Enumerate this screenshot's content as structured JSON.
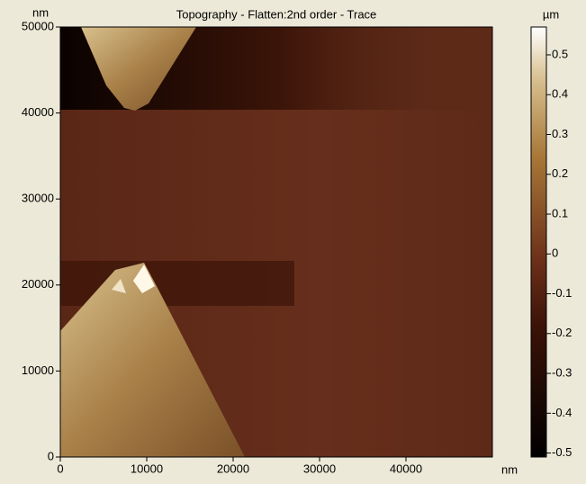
{
  "chart_data": {
    "type": "image",
    "title": "Topography  - Flatten:2nd order  - Trace",
    "x_label": "nm",
    "y_label": "nm",
    "colorbar_label": "µm",
    "xlim": [
      0,
      50000
    ],
    "xticks": [
      0,
      10000,
      20000,
      30000,
      40000
    ],
    "ylim": [
      0,
      50000
    ],
    "yticks": [
      0,
      10000,
      20000,
      30000,
      40000,
      50000
    ],
    "clim": [
      -0.51,
      0.57
    ],
    "cticks": [
      -0.5,
      -0.4,
      -0.3,
      -0.2,
      -0.1,
      0,
      0.1,
      0.2,
      0.3,
      0.4,
      0.5
    ]
  }
}
